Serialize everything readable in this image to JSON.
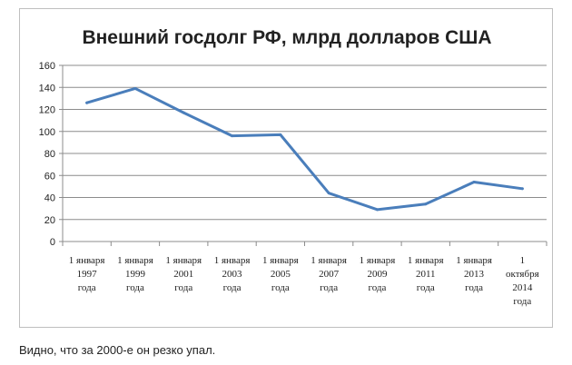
{
  "chart_data": {
    "type": "line",
    "title": "Внешний госдолг РФ, млрд долларов США",
    "xlabel": "",
    "ylabel": "",
    "ylim": [
      0,
      160
    ],
    "yticks": [
      0,
      20,
      40,
      60,
      80,
      100,
      120,
      140,
      160
    ],
    "grid": true,
    "legend": "none",
    "categories": [
      [
        "1 января",
        "1997",
        "года"
      ],
      [
        "1 января",
        "1999",
        "года"
      ],
      [
        "1 января",
        "2001",
        "года"
      ],
      [
        "1 января",
        "2003",
        "года"
      ],
      [
        "1 января",
        "2005",
        "года"
      ],
      [
        "1 января",
        "2007",
        "года"
      ],
      [
        "1 января",
        "2009",
        "года"
      ],
      [
        "1 января",
        "2011",
        "года"
      ],
      [
        "1 января",
        "2013",
        "года"
      ],
      [
        "1",
        "октября",
        "2014",
        "года"
      ]
    ],
    "series": [
      {
        "values": [
          126,
          139,
          117,
          96,
          97,
          44,
          29,
          34,
          54,
          48
        ]
      }
    ],
    "colors": {
      "line": "#4a7ebb",
      "grid": "#8c8c8c",
      "axis": "#8c8c8c"
    }
  },
  "caption": "Видно, что за 2000-е он резко упал."
}
